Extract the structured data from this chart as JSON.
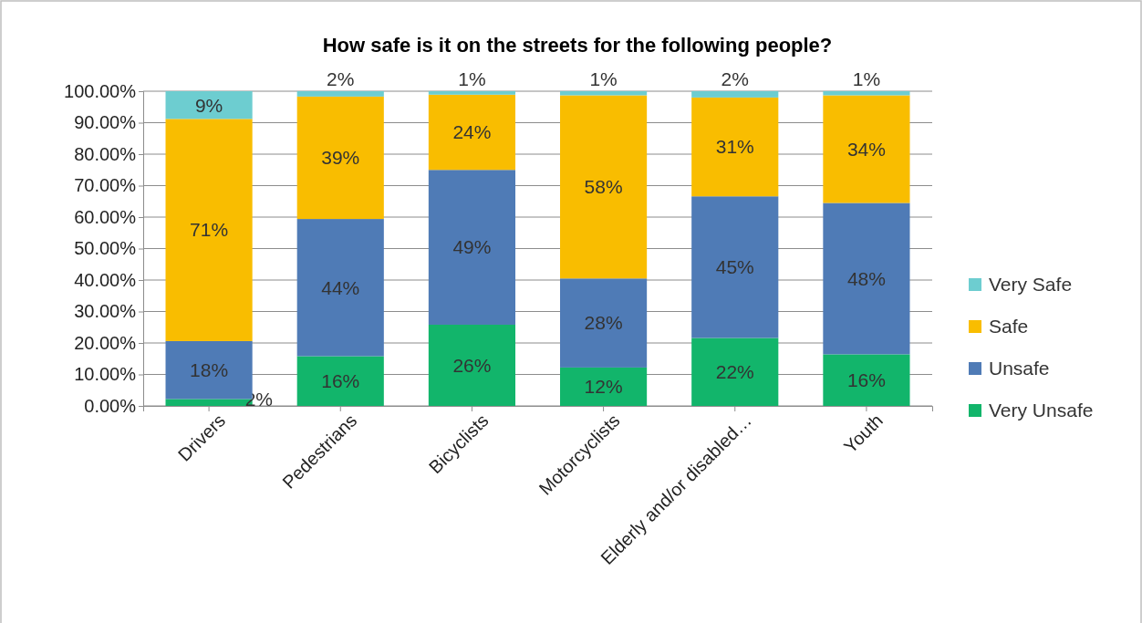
{
  "chart_data": {
    "type": "bar",
    "stacked": true,
    "title": "How safe is it on the streets for the following people?",
    "categories": [
      "Drivers",
      "Pedestrians",
      "Bicyclists",
      "Motorcyclists",
      "Elderly and/or disabled…",
      "Youth"
    ],
    "series": [
      {
        "name": "Very Unsafe",
        "color": "#12b56b",
        "values": [
          2.2,
          15.8,
          25.8,
          12.2,
          21.6,
          16.4
        ],
        "value_labels": [
          "2%",
          "16%",
          "26%",
          "12%",
          "22%",
          "16%"
        ]
      },
      {
        "name": "Unsafe",
        "color": "#4f7bb6",
        "values": [
          18.4,
          43.6,
          49.2,
          28.3,
          45.0,
          48.1
        ],
        "value_labels": [
          "18%",
          "44%",
          "49%",
          "28%",
          "45%",
          "48%"
        ]
      },
      {
        "name": "Safe",
        "color": "#f9bd00",
        "values": [
          70.6,
          38.9,
          23.9,
          58.2,
          31.4,
          34.2
        ],
        "value_labels": [
          "71%",
          "39%",
          "24%",
          "58%",
          "31%",
          "34%"
        ]
      },
      {
        "name": "Very Safe",
        "color": "#6dcdd0",
        "values": [
          8.8,
          1.7,
          1.1,
          1.3,
          2.0,
          1.3
        ],
        "value_labels": [
          "9%",
          "2%",
          "1%",
          "1%",
          "2%",
          "1%"
        ]
      }
    ],
    "ylim": [
      0,
      100
    ],
    "yticks": [
      {
        "value": 0,
        "label": "0.00%"
      },
      {
        "value": 10,
        "label": "10.00%"
      },
      {
        "value": 20,
        "label": "20.00%"
      },
      {
        "value": 30,
        "label": "30.00%"
      },
      {
        "value": 40,
        "label": "40.00%"
      },
      {
        "value": 50,
        "label": "50.00%"
      },
      {
        "value": 60,
        "label": "60.00%"
      },
      {
        "value": 70,
        "label": "70.00%"
      },
      {
        "value": 80,
        "label": "80.00%"
      },
      {
        "value": 90,
        "label": "90.00%"
      },
      {
        "value": 100,
        "label": "100.00%"
      }
    ],
    "grid": "y",
    "legend": "right"
  }
}
